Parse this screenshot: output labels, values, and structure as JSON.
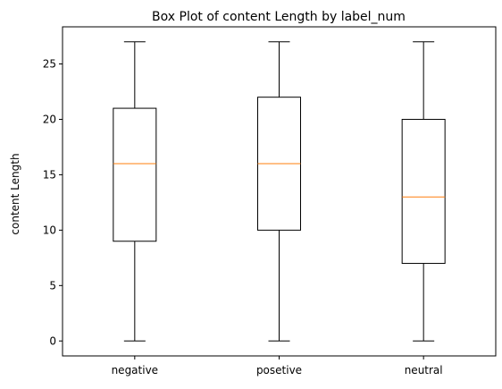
{
  "chart_data": {
    "type": "box",
    "title": "Box Plot of content Length by label_num",
    "xlabel": "",
    "ylabel": "content Length",
    "categories": [
      "negative",
      "posetive",
      "neutral"
    ],
    "boxes": [
      {
        "category": "negative",
        "whisker_low": 0,
        "q1": 9,
        "median": 16,
        "q3": 21,
        "whisker_high": 27
      },
      {
        "category": "posetive",
        "whisker_low": 0,
        "q1": 10,
        "median": 16,
        "q3": 22,
        "whisker_high": 27
      },
      {
        "category": "neutral",
        "whisker_low": 0,
        "q1": 7,
        "median": 13,
        "q3": 20,
        "whisker_high": 27
      }
    ],
    "yticks": [
      0,
      5,
      10,
      15,
      20,
      25
    ],
    "ylim": [
      -1.35,
      28.35
    ],
    "grid": false,
    "legend": "none",
    "colors": {
      "box": "#000000",
      "median": "#ff7f0e",
      "background": "#ffffff"
    }
  }
}
